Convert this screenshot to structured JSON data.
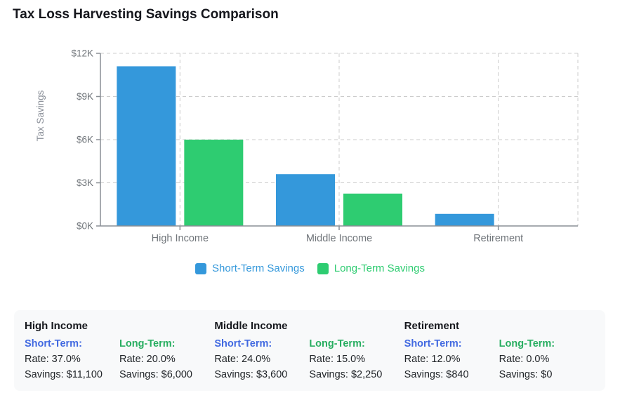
{
  "title": "Tax Loss Harvesting Savings Comparison",
  "colors": {
    "title_text": "#15161c",
    "body_text": "#212529",
    "axis": "#8a8f95",
    "grid": "#cccccc",
    "tick_text": "#70757a",
    "axis_title_text": "#8a8f98",
    "panel_bg": "#f8f9fa",
    "panel_short_term": "#4169e1",
    "panel_long_term": "#27ae60"
  },
  "chart_data": {
    "type": "bar",
    "title": "Tax Loss Harvesting Savings Comparison",
    "categories": [
      "High Income",
      "Middle Income",
      "Retirement"
    ],
    "series": [
      {
        "name": "Short-Term Savings",
        "color": "#3498db",
        "values": [
          11100,
          3600,
          840
        ]
      },
      {
        "name": "Long-Term Savings",
        "color": "#2ecc71",
        "values": [
          6000,
          2250,
          0
        ]
      }
    ],
    "xlabel": "",
    "ylabel": "Tax Savings",
    "ylim": [
      0,
      12000
    ],
    "yticks": [
      0,
      3000,
      6000,
      9000,
      12000
    ],
    "ytick_labels": [
      "$0K",
      "$3K",
      "$6K",
      "$9K",
      "$12K"
    ],
    "grid": true,
    "grid_style": "dashed",
    "legend_position": "bottom"
  },
  "panel": {
    "groups": [
      {
        "title": "High Income",
        "short": {
          "label": "Short-Term:",
          "rate": "Rate: 37.0%",
          "savings": "Savings: $11,100"
        },
        "long": {
          "label": "Long-Term:",
          "rate": "Rate: 20.0%",
          "savings": "Savings: $6,000"
        }
      },
      {
        "title": "Middle Income",
        "short": {
          "label": "Short-Term:",
          "rate": "Rate: 24.0%",
          "savings": "Savings: $3,600"
        },
        "long": {
          "label": "Long-Term:",
          "rate": "Rate: 15.0%",
          "savings": "Savings: $2,250"
        }
      },
      {
        "title": "Retirement",
        "short": {
          "label": "Short-Term:",
          "rate": "Rate: 12.0%",
          "savings": "Savings: $840"
        },
        "long": {
          "label": "Long-Term:",
          "rate": "Rate: 0.0%",
          "savings": "Savings: $0"
        }
      }
    ]
  }
}
